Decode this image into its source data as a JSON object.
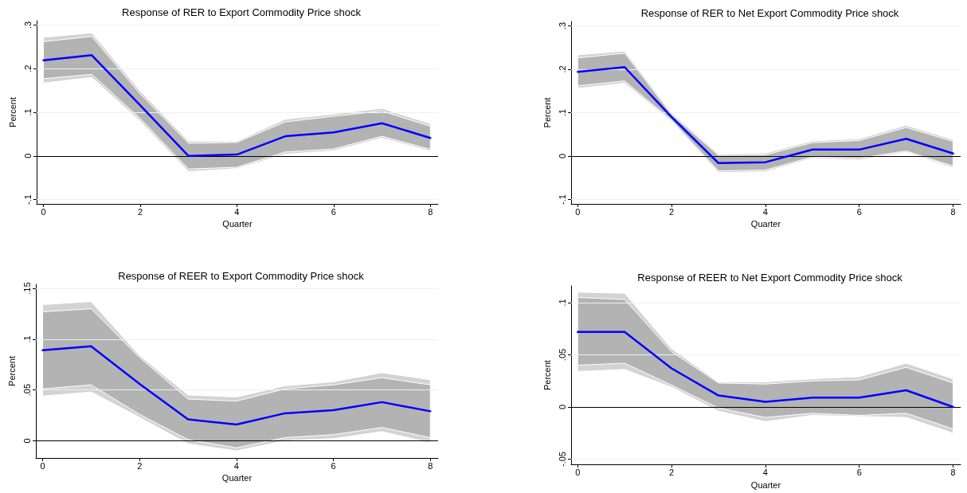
{
  "chart_data": [
    {
      "type": "line",
      "title": "Response of RER to Export Commodity Price shock",
      "xlabel": "Quarter",
      "ylabel": "Percent",
      "x": [
        0,
        1,
        2,
        3,
        4,
        5,
        6,
        7,
        8
      ],
      "xlim": [
        -0.14,
        8.16
      ],
      "xticks": [
        0,
        2,
        4,
        6,
        8
      ],
      "ylim": [
        -0.11,
        0.31
      ],
      "yticks": [
        {
          "value": -0.1,
          "label": "-.1"
        },
        {
          "value": 0,
          "label": "0"
        },
        {
          "value": 0.1,
          "label": ".1"
        },
        {
          "value": 0.2,
          "label": ".2"
        },
        {
          "value": 0.3,
          "label": ".3"
        }
      ],
      "grid": "y",
      "marker": "none",
      "line_style": "solid",
      "ref_lines": [
        {
          "axis": "y",
          "value": 0,
          "color": "#000000"
        }
      ],
      "series": [
        {
          "color": "#d3d3d3",
          "values": [
            null,
            null,
            null,
            null,
            null,
            null,
            null,
            null,
            null
          ],
          "lower": [
            0.167,
            0.18,
            0.08,
            -0.036,
            -0.029,
            0.004,
            0.012,
            0.041,
            0.011
          ],
          "upper": [
            0.272,
            0.282,
            0.149,
            0.034,
            0.034,
            0.084,
            0.096,
            0.109,
            0.074
          ]
        },
        {
          "color": "#b3b3b3",
          "values": [
            null,
            null,
            null,
            null,
            null,
            null,
            null,
            null,
            null
          ],
          "lower": [
            0.177,
            0.187,
            0.086,
            -0.03,
            -0.026,
            0.009,
            0.016,
            0.045,
            0.015
          ],
          "upper": [
            0.262,
            0.274,
            0.142,
            0.029,
            0.031,
            0.078,
            0.091,
            0.103,
            0.068
          ]
        },
        {
          "color": "#0000ff",
          "values": [
            0.219,
            0.231,
            0.116,
            0.0,
            0.003,
            0.045,
            0.054,
            0.075,
            0.041
          ]
        }
      ]
    },
    {
      "type": "line",
      "title": "Response of RER to Net Export Commodity Price shock",
      "xlabel": "Quarter",
      "ylabel": "Percent",
      "x": [
        0,
        1,
        2,
        3,
        4,
        5,
        6,
        7,
        8
      ],
      "xlim": [
        -0.14,
        8.16
      ],
      "xticks": [
        0,
        2,
        4,
        6,
        8
      ],
      "ylim": [
        -0.11,
        0.31
      ],
      "yticks": [
        {
          "value": -0.1,
          "label": "-.1"
        },
        {
          "value": 0,
          "label": "0"
        },
        {
          "value": 0.1,
          "label": ".1"
        },
        {
          "value": 0.2,
          "label": ".2"
        },
        {
          "value": 0.3,
          "label": ".3"
        }
      ],
      "grid": "y",
      "marker": "none",
      "line_style": "solid",
      "ref_lines": [
        {
          "axis": "y",
          "value": 0,
          "color": "#000000"
        }
      ],
      "series": [
        {
          "color": "#d3d3d3",
          "values": [
            null,
            null,
            null,
            null,
            null,
            null,
            null,
            null,
            null
          ],
          "lower": [
            0.156,
            0.168,
            0.08,
            -0.038,
            -0.036,
            -0.005,
            -0.009,
            0.009,
            -0.027
          ],
          "upper": [
            0.233,
            0.242,
            0.1,
            0.005,
            0.007,
            0.035,
            0.04,
            0.071,
            0.038
          ]
        },
        {
          "color": "#b3b3b3",
          "values": [
            null,
            null,
            null,
            null,
            null,
            null,
            null,
            null,
            null
          ],
          "lower": [
            0.162,
            0.173,
            0.083,
            -0.034,
            -0.032,
            -0.002,
            -0.005,
            0.012,
            -0.023
          ],
          "upper": [
            0.226,
            0.237,
            0.096,
            0.002,
            0.003,
            0.031,
            0.036,
            0.066,
            0.034
          ]
        },
        {
          "color": "#0000ff",
          "values": [
            0.194,
            0.205,
            0.09,
            -0.016,
            -0.014,
            0.015,
            0.015,
            0.04,
            0.006
          ]
        }
      ]
    },
    {
      "type": "line",
      "title": "Response of REER to Export Commodity Price shock",
      "xlabel": "Quarter",
      "ylabel": "Percent",
      "x": [
        0,
        1,
        2,
        3,
        4,
        5,
        6,
        7,
        8
      ],
      "xlim": [
        -0.14,
        8.16
      ],
      "xticks": [
        0,
        2,
        4,
        6,
        8
      ],
      "ylim": [
        -0.017,
        0.154
      ],
      "yticks": [
        {
          "value": 0,
          "label": "0"
        },
        {
          "value": 0.05,
          "label": ".05"
        },
        {
          "value": 0.1,
          "label": ".1"
        },
        {
          "value": 0.15,
          "label": ".15"
        }
      ],
      "grid": "y",
      "marker": "none",
      "line_style": "solid",
      "ref_lines": [
        {
          "axis": "y",
          "value": 0,
          "color": "#000000"
        }
      ],
      "series": [
        {
          "color": "#d3d3d3",
          "values": [
            null,
            null,
            null,
            null,
            null,
            null,
            null,
            null,
            null
          ],
          "lower": [
            0.044,
            0.048,
            0.023,
            -0.003,
            -0.01,
            0.0,
            0.002,
            0.009,
            -0.002
          ],
          "upper": [
            0.134,
            0.137,
            0.084,
            0.045,
            0.043,
            0.054,
            0.058,
            0.067,
            0.06
          ]
        },
        {
          "color": "#b3b3b3",
          "values": [
            null,
            null,
            null,
            null,
            null,
            null,
            null,
            null,
            null
          ],
          "lower": [
            0.051,
            0.055,
            0.026,
            0.001,
            -0.007,
            0.003,
            0.006,
            0.013,
            0.003
          ],
          "upper": [
            0.127,
            0.13,
            0.082,
            0.041,
            0.039,
            0.051,
            0.055,
            0.062,
            0.055
          ]
        },
        {
          "color": "#0000ff",
          "values": [
            0.089,
            0.093,
            0.056,
            0.021,
            0.016,
            0.027,
            0.03,
            0.038,
            0.029
          ]
        }
      ]
    },
    {
      "type": "line",
      "title": "Response of REER to Net Export Commodity Price shock",
      "xlabel": "Quarter",
      "ylabel": "Percent",
      "x": [
        0,
        1,
        2,
        3,
        4,
        5,
        6,
        7,
        8
      ],
      "xlim": [
        -0.14,
        8.16
      ],
      "xticks": [
        0,
        2,
        4,
        6,
        8
      ],
      "ylim": [
        -0.055,
        0.116
      ],
      "yticks": [
        {
          "value": -0.05,
          "label": "-.05"
        },
        {
          "value": 0,
          "label": "0"
        },
        {
          "value": 0.05,
          "label": ".05"
        },
        {
          "value": 0.1,
          "label": ".1"
        }
      ],
      "grid": "y",
      "marker": "none",
      "line_style": "solid",
      "ref_lines": [
        {
          "axis": "y",
          "value": 0,
          "color": "#000000"
        }
      ],
      "series": [
        {
          "color": "#d3d3d3",
          "values": [
            null,
            null,
            null,
            null,
            null,
            null,
            null,
            null,
            null
          ],
          "lower": [
            0.034,
            0.036,
            0.019,
            -0.004,
            -0.014,
            -0.008,
            -0.009,
            -0.01,
            -0.025
          ],
          "upper": [
            0.11,
            0.109,
            0.056,
            0.024,
            0.024,
            0.027,
            0.029,
            0.042,
            0.027
          ]
        },
        {
          "color": "#b3b3b3",
          "values": [
            null,
            null,
            null,
            null,
            null,
            null,
            null,
            null,
            null
          ],
          "lower": [
            0.04,
            0.042,
            0.021,
            -0.001,
            -0.01,
            -0.006,
            -0.008,
            -0.006,
            -0.021
          ],
          "upper": [
            0.105,
            0.103,
            0.053,
            0.023,
            0.022,
            0.025,
            0.026,
            0.038,
            0.023
          ]
        },
        {
          "color": "#0000ff",
          "values": [
            0.072,
            0.072,
            0.037,
            0.011,
            0.005,
            0.009,
            0.009,
            0.016,
            0.0
          ]
        }
      ]
    }
  ]
}
